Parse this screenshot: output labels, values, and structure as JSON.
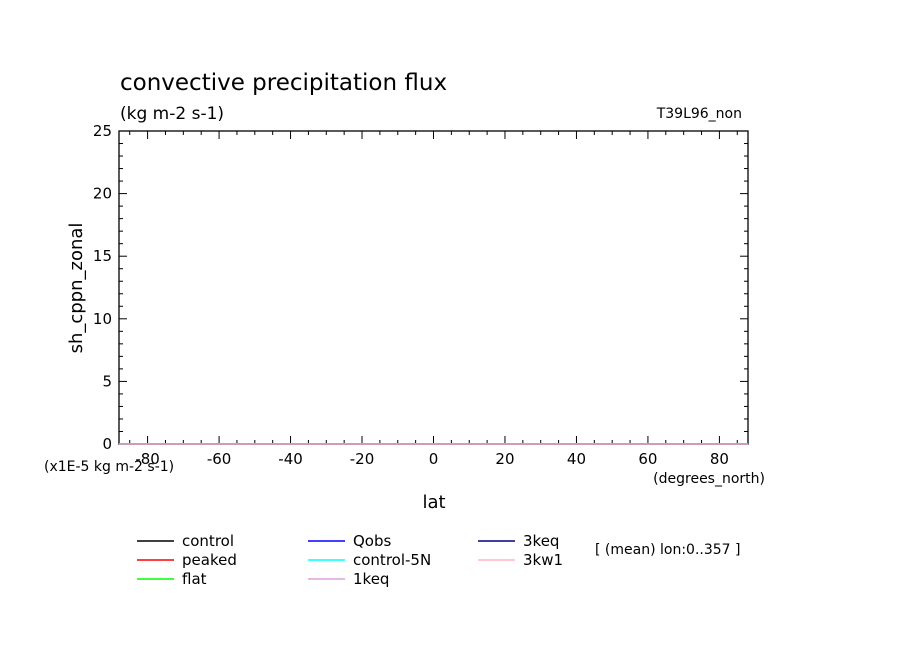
{
  "chart_data": {
    "type": "line",
    "title": "convective precipitation flux",
    "subtitle": "(kg m-2 s-1)",
    "run_label": "T39L96_non",
    "ylabel": "sh_cppn_zonal",
    "xlabel": "lat",
    "x_units": "(degrees_north)",
    "y_scale_note": "(x1E-5 kg m-2 s-1)",
    "averaging_note": "[ (mean) lon:0..357 ]",
    "xlim": [
      -88,
      88
    ],
    "ylim": [
      0,
      25
    ],
    "x_ticks": [
      -80,
      -60,
      -40,
      -20,
      0,
      20,
      40,
      60,
      80
    ],
    "y_ticks": [
      0,
      5,
      10,
      15,
      20,
      25
    ],
    "grid": false,
    "legend_placement": "bottom",
    "series": [
      {
        "name": "control",
        "color": "#000000",
        "x": [
          -88,
          88
        ],
        "y": [
          0,
          0
        ]
      },
      {
        "name": "peaked",
        "color": "#ff0000",
        "x": [
          -88,
          88
        ],
        "y": [
          0,
          0
        ]
      },
      {
        "name": "flat",
        "color": "#00ff00",
        "x": [
          -88,
          88
        ],
        "y": [
          0,
          0
        ]
      },
      {
        "name": "Qobs",
        "color": "#0000ff",
        "x": [
          -88,
          88
        ],
        "y": [
          0,
          0
        ]
      },
      {
        "name": "control-5N",
        "color": "#00ffff",
        "x": [
          -88,
          88
        ],
        "y": [
          0,
          0
        ]
      },
      {
        "name": "1keq",
        "color": "#dda0dd",
        "x": [
          -88,
          88
        ],
        "y": [
          0,
          0
        ]
      },
      {
        "name": "3keq",
        "color": "#000080",
        "x": [
          -88,
          88
        ],
        "y": [
          0,
          0
        ]
      },
      {
        "name": "3kw1",
        "color": "#ffb6c1",
        "x": [
          -88,
          88
        ],
        "y": [
          0,
          0
        ]
      }
    ]
  }
}
